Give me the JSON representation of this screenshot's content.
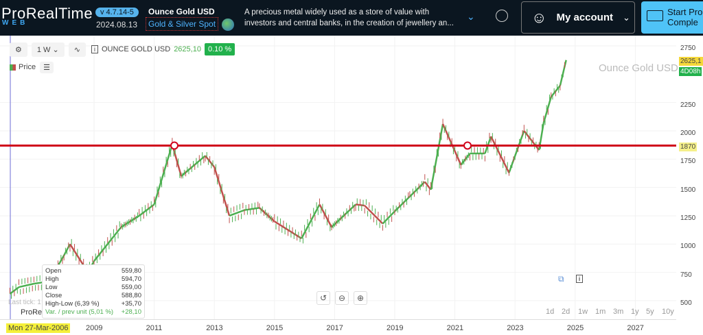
{
  "header": {
    "logo": "ProRealTime",
    "logo_sub": "WEB",
    "version": "v 4.7.14-5",
    "date": "2024.08.13",
    "instrument": "Ounce Gold USD",
    "market": "Gold & Silver Spot",
    "description_line1": "A precious metal widely used as a store of value with",
    "description_line2": "investors and central banks, in the creation of jewellery an...",
    "account": "My account",
    "start_line1": "Start Pro",
    "start_line2": "Comple"
  },
  "toolbar": {
    "timeframe": "1 W",
    "symbol": "OUNCE GOLD USD",
    "price": "2625,10",
    "change": "0.10 %",
    "legend": "Price"
  },
  "chart": {
    "watermark": "Ounce Gold USD",
    "last_price_tag": "2625,1",
    "countdown_tag": "4D08h",
    "line_tag": "1870",
    "cursor_date": "Mon 27-Mar-2006",
    "last_tick": "Last tick: 1",
    "prorealtime": "ProRea",
    "y_ticks": [
      "2750",
      "2250",
      "2000",
      "1750",
      "1500",
      "1250",
      "1000",
      "750",
      "500"
    ],
    "x_ticks": [
      "2009",
      "2011",
      "2013",
      "2015",
      "2017",
      "2019",
      "2021",
      "2023",
      "2025",
      "2027"
    ],
    "periods": [
      "1d",
      "2d",
      "1w",
      "1m",
      "3m",
      "1y",
      "5y",
      "10y"
    ]
  },
  "tooltip": [
    [
      "Open",
      "559,80"
    ],
    [
      "High",
      "594,70"
    ],
    [
      "Low",
      "559,00"
    ],
    [
      "Close",
      "588,80"
    ],
    [
      "High-Low (6,39 %)",
      "+35,70"
    ],
    [
      "Var. / prev unit (5,01 %)",
      "+28,10"
    ]
  ],
  "series": [
    [
      2006.2,
      560
    ],
    [
      2006.5,
      620
    ],
    [
      2007,
      650
    ],
    [
      2007.5,
      670
    ],
    [
      2008,
      900
    ],
    [
      2008.2,
      1000
    ],
    [
      2008.8,
      750
    ],
    [
      2009,
      850
    ],
    [
      2009.9,
      1150
    ],
    [
      2010.5,
      1250
    ],
    [
      2011,
      1350
    ],
    [
      2011.6,
      1880
    ],
    [
      2011.9,
      1600
    ],
    [
      2012.7,
      1780
    ],
    [
      2013,
      1680
    ],
    [
      2013.5,
      1250
    ],
    [
      2014,
      1300
    ],
    [
      2014.5,
      1320
    ],
    [
      2015,
      1200
    ],
    [
      2015.9,
      1050
    ],
    [
      2016.5,
      1350
    ],
    [
      2016.9,
      1150
    ],
    [
      2017.7,
      1350
    ],
    [
      2018,
      1340
    ],
    [
      2018.6,
      1180
    ],
    [
      2019,
      1290
    ],
    [
      2019.5,
      1420
    ],
    [
      2020,
      1550
    ],
    [
      2020.2,
      1480
    ],
    [
      2020.6,
      2060
    ],
    [
      2021.2,
      1700
    ],
    [
      2021.5,
      1800
    ],
    [
      2022,
      1800
    ],
    [
      2022.2,
      1950
    ],
    [
      2022.8,
      1630
    ],
    [
      2023.3,
      2000
    ],
    [
      2023.8,
      1830
    ],
    [
      2023.95,
      2070
    ],
    [
      2024.2,
      2300
    ],
    [
      2024.5,
      2400
    ],
    [
      2024.7,
      2625
    ]
  ],
  "hline": 1870,
  "colors": {
    "up": "#4caf50",
    "down": "#c0504d",
    "line": "#d0021b"
  }
}
